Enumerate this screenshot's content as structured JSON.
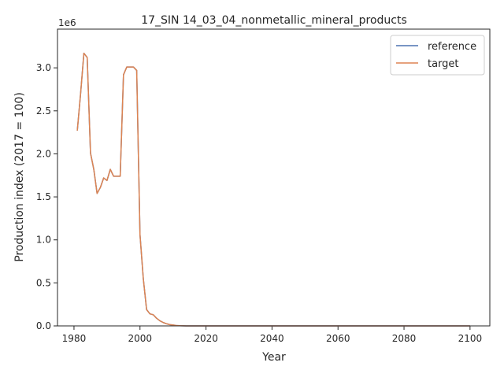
{
  "chart_data": {
    "type": "line",
    "title": "17_SIN 14_03_04_nonmetallic_mineral_products",
    "xlabel": "Year",
    "ylabel": "Production index (2017 = 100)",
    "y_offset_label": "1e6",
    "xlim": [
      1975,
      2106
    ],
    "ylim": [
      0,
      3450000
    ],
    "x_ticks": [
      1980,
      2000,
      2020,
      2040,
      2060,
      2080,
      2100
    ],
    "x_tick_labels": [
      "1980",
      "2000",
      "2020",
      "2040",
      "2060",
      "2080",
      "2100"
    ],
    "y_ticks": [
      0,
      500000,
      1000000,
      1500000,
      2000000,
      2500000,
      3000000
    ],
    "y_tick_labels": [
      "0.0",
      "0.5",
      "1.0",
      "1.5",
      "2.0",
      "2.5",
      "3.0"
    ],
    "grid": false,
    "legend_position": "upper-right",
    "colors": {
      "reference": "#4c72b0",
      "target": "#dd8452",
      "axis": "#262626"
    },
    "x": [
      1981,
      1982,
      1983,
      1984,
      1985,
      1986,
      1987,
      1988,
      1989,
      1990,
      1991,
      1992,
      1993,
      1994,
      1995,
      1996,
      1997,
      1998,
      1999,
      2000,
      2001,
      2002,
      2003,
      2004,
      2005,
      2006,
      2007,
      2008,
      2009,
      2010,
      2011,
      2012,
      2013,
      2014,
      2015,
      2016,
      2017,
      2018,
      2019,
      2020,
      2025,
      2030,
      2035,
      2040,
      2045,
      2050,
      2055,
      2060,
      2065,
      2070,
      2075,
      2080,
      2085,
      2090,
      2095,
      2100
    ],
    "series": [
      {
        "name": "reference",
        "values": [
          2270000,
          2700000,
          3170000,
          3120000,
          2010000,
          1820000,
          1540000,
          1610000,
          1720000,
          1690000,
          1820000,
          1740000,
          1740000,
          1740000,
          2920000,
          3010000,
          3010000,
          3010000,
          2970000,
          1060000,
          550000,
          190000,
          140000,
          130000,
          90000,
          60000,
          40000,
          25000,
          15000,
          10000,
          5000,
          2000,
          1000,
          500,
          200,
          100,
          100,
          50,
          30,
          20,
          10,
          5,
          3,
          2,
          1,
          1,
          1,
          1,
          1,
          1,
          1,
          1,
          1,
          1,
          1,
          1
        ]
      },
      {
        "name": "target",
        "values": [
          2270000,
          2700000,
          3170000,
          3120000,
          2010000,
          1820000,
          1540000,
          1610000,
          1720000,
          1690000,
          1820000,
          1740000,
          1740000,
          1740000,
          2920000,
          3010000,
          3010000,
          3010000,
          2970000,
          1060000,
          550000,
          190000,
          140000,
          130000,
          90000,
          60000,
          40000,
          25000,
          15000,
          10000,
          5000,
          2000,
          1000,
          500,
          200,
          100,
          100,
          50,
          30,
          20,
          10,
          5,
          3,
          2,
          1,
          1,
          1,
          1,
          1,
          1,
          1,
          1,
          1,
          1,
          1,
          1
        ]
      }
    ]
  }
}
